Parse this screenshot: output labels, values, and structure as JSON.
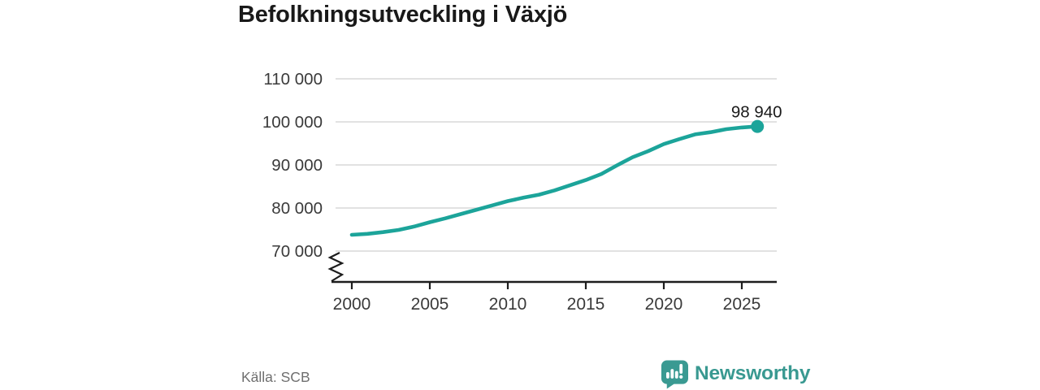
{
  "title": "Befolkningsutveckling i Växjö",
  "source": "Källa: SCB",
  "branding": {
    "name": "Newsworthy",
    "logo_icon": "speech-bubble-bar-chart-exclamation",
    "color": "#3a9a92"
  },
  "colors": {
    "line": "#1CA49A",
    "dot": "#1CA49A",
    "grid": "#d9d9d9",
    "axis": "#1d1d1d",
    "title_text": "#191919",
    "tick_text": "#3a3a3a",
    "end_label_text": "#191919",
    "source_text": "#6f6f6f",
    "background": "#ffffff"
  },
  "chart_data": {
    "type": "line",
    "title": "Befolkningsutveckling i Växjö",
    "xlabel": "",
    "ylabel": "",
    "x": [
      2000,
      2001,
      2002,
      2003,
      2004,
      2005,
      2006,
      2007,
      2008,
      2009,
      2010,
      2011,
      2012,
      2013,
      2014,
      2015,
      2016,
      2017,
      2018,
      2019,
      2020,
      2021,
      2022,
      2023,
      2024,
      2025,
      2026
    ],
    "values": [
      73770,
      74000,
      74400,
      74900,
      75700,
      76700,
      77600,
      78600,
      79600,
      80600,
      81600,
      82400,
      83100,
      84100,
      85300,
      86500,
      87900,
      89900,
      91800,
      93200,
      94850,
      96000,
      97100,
      97600,
      98300,
      98700,
      98940
    ],
    "end_value": 98940,
    "end_label": "98 940",
    "yticks": [
      {
        "value": 70000,
        "label": "70 000"
      },
      {
        "value": 80000,
        "label": "80 000"
      },
      {
        "value": 90000,
        "label": "90 000"
      },
      {
        "value": 100000,
        "label": "100 000"
      },
      {
        "value": 110000,
        "label": "110 000"
      }
    ],
    "xticks": [
      2000,
      2005,
      2010,
      2015,
      2020,
      2025
    ],
    "ylim": [
      70000,
      110000
    ],
    "xlim": [
      2000,
      2027
    ],
    "axis_break": true,
    "grid": "horizontal",
    "legend": "none"
  }
}
